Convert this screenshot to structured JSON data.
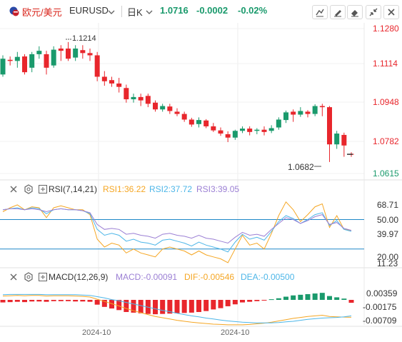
{
  "header": {
    "name_cn": "欧元/美元",
    "symbol": "EURUSD",
    "interval": "日K",
    "price": "1.0716",
    "change": "-0.0002",
    "change_pct": "-0.02%"
  },
  "main_axis": {
    "ticks": [
      "1.1280",
      "1.1114",
      "1.0948",
      "1.0782",
      "1.0615"
    ]
  },
  "main_annotations": {
    "high": "1.1214",
    "low": "1.0682"
  },
  "rsi": {
    "title": "RSI(7,14,21)",
    "rsi1": "RSI1:36.22",
    "rsi2": "RSI2:37.72",
    "rsi3": "RSI3:39.05",
    "axis": [
      "68.71",
      "50.00",
      "39.97",
      "20.00",
      "11.23"
    ]
  },
  "macd": {
    "title": "MACD(12,26,9)",
    "macd": "MACD:-0.00091",
    "dif": "DIF:-0.00546",
    "dea": "DEA:-0.00500",
    "axis": [
      "0.00359",
      "-0.00175",
      "-0.00709"
    ]
  },
  "x_axis": {
    "labels": [
      "2024-10",
      "2024-10"
    ]
  },
  "colors": {
    "up": "#1a9a6c",
    "down": "#e8262c",
    "rsi1": "#f5a623",
    "rsi2": "#4db6e8",
    "rsi3": "#9b7fd4",
    "accent": "#1a9a6c"
  },
  "chart_data": {
    "type": "candlestick",
    "candles": [
      [
        1.107,
        1.114,
        1.1155,
        1.106
      ],
      [
        1.1135,
        1.113,
        1.115,
        1.111
      ],
      [
        1.113,
        1.1148,
        1.117,
        1.11
      ],
      [
        1.115,
        1.108,
        1.116,
        1.107
      ],
      [
        1.11,
        1.116,
        1.117,
        1.108
      ],
      [
        1.116,
        1.1175,
        1.1195,
        1.114
      ],
      [
        1.116,
        1.11,
        1.1175,
        1.107
      ],
      [
        1.111,
        1.118,
        1.1195,
        1.11
      ],
      [
        1.1185,
        1.1175,
        1.12,
        1.113
      ],
      [
        1.1185,
        1.114,
        1.1214,
        1.113
      ],
      [
        1.1145,
        1.1185,
        1.12,
        1.113
      ],
      [
        1.1178,
        1.1165,
        1.12,
        1.114
      ],
      [
        1.1165,
        1.1155,
        1.1185,
        1.113
      ],
      [
        1.1155,
        1.106,
        1.117,
        1.104
      ],
      [
        1.106,
        1.104,
        1.1085,
        1.102
      ],
      [
        1.1045,
        1.103,
        1.106,
        1.1015
      ],
      [
        1.103,
        1.1015,
        1.1055,
        1.099
      ],
      [
        1.101,
        1.096,
        1.1025,
        1.0945
      ],
      [
        1.096,
        1.097,
        1.0985,
        1.0945
      ],
      [
        1.097,
        1.0955,
        1.0985,
        1.093
      ],
      [
        1.0975,
        1.094,
        1.0985,
        1.0925
      ],
      [
        1.0945,
        1.0915,
        1.0955,
        1.0905
      ],
      [
        1.0915,
        1.093,
        1.094,
        1.0905
      ],
      [
        1.0928,
        1.0908,
        1.094,
        1.0895
      ],
      [
        1.0905,
        1.0895,
        1.092,
        1.0885
      ],
      [
        1.0895,
        1.087,
        1.0905,
        1.086
      ],
      [
        1.087,
        1.0848,
        1.0878,
        1.0838
      ],
      [
        1.085,
        1.0868,
        1.088,
        1.0835
      ],
      [
        1.0866,
        1.084,
        1.0872,
        1.0832
      ],
      [
        1.084,
        1.0822,
        1.0855,
        1.0815
      ],
      [
        1.0822,
        1.0808,
        1.0835,
        1.0798
      ],
      [
        1.0805,
        1.079,
        1.0818,
        1.077
      ],
      [
        1.079,
        1.082,
        1.0825,
        1.078
      ],
      [
        1.082,
        1.083,
        1.084,
        1.081
      ],
      [
        1.083,
        1.0815,
        1.084,
        1.08
      ],
      [
        1.082,
        1.0825,
        1.0832,
        1.0805
      ],
      [
        1.0825,
        1.0815,
        1.084,
        1.08
      ],
      [
        1.082,
        1.0832,
        1.0845,
        1.081
      ],
      [
        1.0835,
        1.087,
        1.088,
        1.0825
      ],
      [
        1.0868,
        1.0902,
        1.091,
        1.0855
      ],
      [
        1.0905,
        1.0892,
        1.0915,
        1.086
      ],
      [
        1.0892,
        1.0908,
        1.0925,
        1.0882
      ],
      [
        1.0905,
        1.0895,
        1.0912,
        1.088
      ],
      [
        1.0895,
        1.093,
        1.0938,
        1.0885
      ],
      [
        1.093,
        1.0925,
        1.094,
        1.0885
      ],
      [
        1.0925,
        1.076,
        1.093,
        1.0682
      ],
      [
        1.076,
        1.0808,
        1.082,
        1.074
      ],
      [
        1.0802,
        1.0755,
        1.0812,
        1.0705
      ],
      [
        1.0718,
        1.0716,
        1.0725,
        1.0705
      ]
    ],
    "ylim": [
      1.0615,
      1.128
    ],
    "rsi_series": [
      {
        "name": "RSI1",
        "values": [
          58,
          62,
          65,
          60,
          63,
          62,
          52,
          62,
          64,
          62,
          60,
          60,
          55,
          30,
          22,
          26,
          24,
          16,
          20,
          16,
          14,
          12,
          20,
          22,
          20,
          18,
          14,
          18,
          14,
          12,
          10,
          6,
          20,
          34,
          24,
          26,
          20,
          36,
          54,
          68,
          60,
          48,
          55,
          63,
          66,
          42,
          54,
          40,
          39
        ]
      },
      {
        "name": "RSI2",
        "values": [
          60,
          61,
          62,
          60,
          62,
          61,
          56,
          60,
          61,
          60,
          60,
          59,
          56,
          40,
          34,
          36,
          34,
          28,
          30,
          27,
          26,
          24,
          29,
          30,
          28,
          26,
          23,
          27,
          24,
          22,
          20,
          17,
          27,
          35,
          30,
          32,
          29,
          38,
          48,
          54,
          51,
          46,
          50,
          55,
          57,
          44,
          49,
          40,
          38
        ]
      },
      {
        "name": "RSI3",
        "values": [
          60,
          61,
          61,
          60,
          61,
          60,
          58,
          60,
          61,
          60,
          60,
          59,
          57,
          45,
          40,
          41,
          40,
          35,
          36,
          34,
          33,
          31,
          35,
          36,
          34,
          33,
          31,
          34,
          31,
          30,
          28,
          26,
          32,
          37,
          34,
          35,
          33,
          40,
          46,
          52,
          50,
          46,
          49,
          53,
          55,
          45,
          47,
          41,
          39
        ]
      }
    ],
    "macd_series": [
      {
        "name": "MACD",
        "values": [
          -0.0008,
          -0.0007,
          -0.0006,
          -0.0007,
          -0.0005,
          -0.0005,
          -0.0006,
          -0.0004,
          -0.0004,
          -0.0004,
          -0.0005,
          -0.0005,
          -0.0006,
          -0.0015,
          -0.0022,
          -0.0027,
          -0.0032,
          -0.0038,
          -0.004,
          -0.0042,
          -0.0044,
          -0.0045,
          -0.0044,
          -0.0043,
          -0.0042,
          -0.0041,
          -0.004,
          -0.0038,
          -0.0035,
          -0.003,
          -0.0026,
          -0.002,
          -0.0014,
          -0.0008,
          -0.0006,
          -0.0004,
          -0.0002,
          0.0002,
          0.0005,
          0.001,
          0.0014,
          0.0016,
          0.0018,
          0.002,
          0.0022,
          0.0012,
          0.0008,
          0.0004,
          -0.00091
        ]
      },
      {
        "name": "DIF",
        "values": [
          0.0012,
          0.0013,
          0.0014,
          0.0013,
          0.0014,
          0.0014,
          0.0012,
          0.0013,
          0.0013,
          0.0013,
          0.0012,
          0.0011,
          0.0009,
          0.0002,
          -0.0005,
          -0.0012,
          -0.0019,
          -0.0027,
          -0.0034,
          -0.004,
          -0.0046,
          -0.0052,
          -0.0056,
          -0.006,
          -0.0064,
          -0.0067,
          -0.007,
          -0.0072,
          -0.0074,
          -0.0076,
          -0.0077,
          -0.0078,
          -0.0078,
          -0.0078,
          -0.0077,
          -0.0075,
          -0.0073,
          -0.007,
          -0.0066,
          -0.0062,
          -0.0058,
          -0.0055,
          -0.0052,
          -0.005,
          -0.0048,
          -0.0052,
          -0.0053,
          -0.0054,
          -0.00546
        ]
      },
      {
        "name": "DEA",
        "values": [
          0.0016,
          0.0017,
          0.0017,
          0.0017,
          0.0017,
          0.0017,
          0.0016,
          0.0016,
          0.0016,
          0.0016,
          0.0016,
          0.0015,
          0.0014,
          0.001,
          0.0006,
          0.0001,
          -0.0003,
          -0.0008,
          -0.0013,
          -0.0018,
          -0.0023,
          -0.0028,
          -0.0033,
          -0.0037,
          -0.0042,
          -0.0046,
          -0.005,
          -0.0053,
          -0.0057,
          -0.006,
          -0.0063,
          -0.0066,
          -0.0068,
          -0.007,
          -0.0071,
          -0.0072,
          -0.0072,
          -0.0072,
          -0.0071,
          -0.0069,
          -0.0067,
          -0.0064,
          -0.0061,
          -0.0059,
          -0.0057,
          -0.0056,
          -0.0055,
          -0.0053,
          -0.005
        ]
      }
    ]
  }
}
